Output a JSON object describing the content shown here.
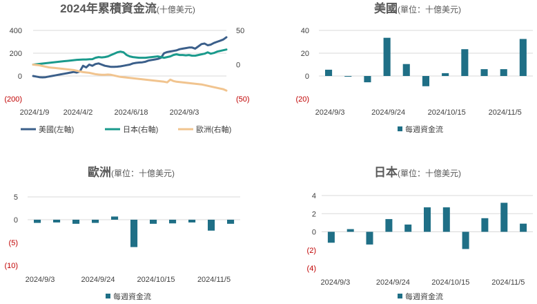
{
  "colors": {
    "us": "#3b5f8a",
    "japan": "#1a9a8c",
    "europe": "#f1c48f",
    "bar": "#1f6f86",
    "negative": "#c00000",
    "grid": "#d9d9d9"
  },
  "chart_data": [
    {
      "id": "cumulative",
      "type": "line",
      "title": "2024年累積資金流",
      "subtitle": "(十億美元)",
      "left_ticks": [
        "400",
        "200",
        "0",
        "(200)"
      ],
      "right_ticks": [
        "50",
        "0",
        "(50)"
      ],
      "ylim_left": [
        -200,
        400
      ],
      "ylim_right": [
        -50,
        50
      ],
      "x_ticks": [
        "2024/1/9",
        "2024/4/2",
        "2024/6/18",
        "2024/9/3"
      ],
      "series": [
        {
          "name": "美國(左軸)",
          "axis": "left",
          "color_key": "us",
          "values": [
            0,
            -5,
            -10,
            -12,
            -10,
            -5,
            0,
            5,
            10,
            15,
            20,
            25,
            30,
            35,
            30,
            40,
            90,
            75,
            100,
            90,
            105,
            110,
            100,
            90,
            85,
            80,
            80,
            82,
            85,
            90,
            95,
            100,
            110,
            115,
            118,
            120,
            125,
            135,
            140,
            145,
            150,
            160,
            200,
            210,
            215,
            220,
            225,
            235,
            240,
            245,
            250,
            250,
            240,
            260,
            280,
            285,
            270,
            275,
            290,
            300,
            310,
            320,
            340
          ]
        },
        {
          "name": "日本(右軸)",
          "axis": "right",
          "color_key": "japan",
          "values": [
            0,
            0.5,
            1,
            1.5,
            2,
            2.5,
            3,
            3.5,
            4,
            4.5,
            5,
            5.5,
            6,
            6.5,
            7,
            7.2,
            7.5,
            7.5,
            7.8,
            8,
            10,
            11,
            10.5,
            11,
            12,
            14,
            16,
            18,
            19,
            18,
            14,
            12,
            11,
            10.5,
            10,
            10,
            10,
            10.5,
            11,
            11.5,
            12,
            11,
            10,
            11,
            12,
            14,
            15,
            14,
            14,
            13.5,
            14,
            13,
            13,
            14,
            15,
            16,
            18,
            16,
            17,
            19,
            20,
            21,
            22
          ]
        },
        {
          "name": "歐洲(右軸)",
          "axis": "right",
          "color_key": "europe",
          "values": [
            0,
            -0.5,
            -1,
            -2,
            -3,
            -4,
            -4.5,
            -5,
            -5.5,
            -6,
            -6.5,
            -7,
            -7.5,
            -8,
            -9,
            -10,
            -11,
            -11.5,
            -12,
            -13,
            -14,
            -14.5,
            -15,
            -15,
            -14.5,
            -15,
            -16,
            -17,
            -18,
            -18.5,
            -19,
            -19.5,
            -20,
            -20.5,
            -21,
            -21.5,
            -22,
            -22.5,
            -23,
            -23.5,
            -24,
            -24.5,
            -25,
            -26,
            -22,
            -24,
            -25,
            -25.5,
            -26,
            -26.5,
            -27,
            -27.5,
            -28,
            -28.5,
            -29,
            -30,
            -31,
            -32,
            -33,
            -34,
            -35,
            -36,
            -38
          ]
        }
      ]
    },
    {
      "id": "us",
      "type": "bar",
      "title": "美國",
      "subtitle": "(單位：十億美元)",
      "ylim": [
        -20,
        40
      ],
      "y_ticks": [
        "40",
        "20",
        "0",
        "(20)"
      ],
      "x_ticks": [
        "2024/9/3",
        "2024/9/24",
        "2024/10/15",
        "2024/11/5"
      ],
      "values": [
        5.5,
        -0.5,
        -5.5,
        33.5,
        10.5,
        -9,
        2.5,
        23.5,
        6,
        6,
        32.5
      ],
      "legend": "每週資金流"
    },
    {
      "id": "europe",
      "type": "bar",
      "title": "歐洲",
      "subtitle": "(單位：十億美元)",
      "ylim": [
        -10,
        5
      ],
      "y_ticks": [
        "5",
        "0",
        "(5)",
        "(10)"
      ],
      "x_ticks": [
        "2024/9/3",
        "2024/9/24",
        "2024/10/15",
        "2024/11/5"
      ],
      "values": [
        -0.7,
        -0.6,
        -0.9,
        -0.7,
        0.7,
        -6,
        -0.9,
        -0.8,
        -0.6,
        -2.4,
        -0.9
      ],
      "legend": "每週資金流"
    },
    {
      "id": "japan",
      "type": "bar",
      "title": "日本",
      "subtitle": "(單位：十億美元)",
      "ylim": [
        -4,
        4
      ],
      "y_ticks": [
        "4",
        "2",
        "0",
        "(2)",
        "(4)"
      ],
      "x_ticks": [
        "2024/9/3",
        "2024/9/24",
        "2024/10/15",
        "2024/11/5"
      ],
      "values": [
        -1.2,
        0.3,
        -1.4,
        1.4,
        0.8,
        2.7,
        2.7,
        -1.9,
        1.5,
        3.2,
        0.9
      ],
      "legend": "每週資金流"
    }
  ]
}
